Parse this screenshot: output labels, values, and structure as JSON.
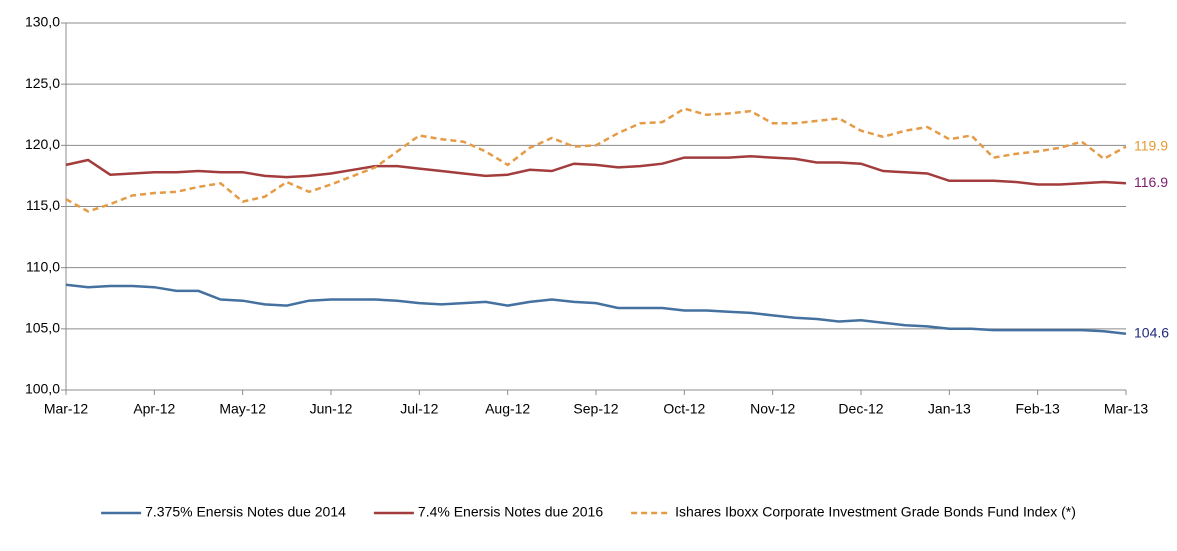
{
  "chart_data": {
    "type": "line",
    "categories": [
      "Mar-12",
      null,
      null,
      null,
      "Apr-12",
      null,
      null,
      null,
      "May-12",
      null,
      null,
      null,
      "Jun-12",
      null,
      null,
      null,
      "Jul-12",
      null,
      null,
      null,
      "Aug-12",
      null,
      null,
      null,
      "Sep-12",
      null,
      null,
      null,
      "Oct-12",
      null,
      null,
      null,
      "Nov-12",
      null,
      null,
      null,
      "Dec-12",
      null,
      null,
      null,
      "Jan-13",
      null,
      null,
      null,
      "Feb-13",
      null,
      null,
      null,
      "Mar-13"
    ],
    "series": [
      {
        "name": "7.375% Enersis Notes due 2014",
        "color": "#44719f",
        "label_color": "#1f2a7a",
        "style": "solid",
        "values": [
          108.6,
          108.4,
          108.5,
          108.5,
          108.4,
          108.1,
          108.1,
          107.4,
          107.3,
          107.0,
          106.9,
          107.3,
          107.4,
          107.4,
          107.4,
          107.3,
          107.1,
          107.0,
          107.1,
          107.2,
          106.9,
          107.2,
          107.4,
          107.2,
          107.1,
          106.7,
          106.7,
          106.7,
          106.5,
          106.5,
          106.4,
          106.3,
          106.1,
          105.9,
          105.8,
          105.6,
          105.7,
          105.5,
          105.3,
          105.2,
          105.0,
          105.0,
          104.9,
          104.9,
          104.9,
          104.9,
          104.9,
          104.8,
          104.6
        ]
      },
      {
        "name": "7.4% Enersis Notes due 2016",
        "color": "#a33c3c",
        "label_color": "#7a1f6e",
        "style": "solid",
        "values": [
          118.4,
          118.8,
          117.6,
          117.7,
          117.8,
          117.8,
          117.9,
          117.8,
          117.8,
          117.5,
          117.4,
          117.5,
          117.7,
          118.0,
          118.3,
          118.3,
          118.1,
          117.9,
          117.7,
          117.5,
          117.6,
          118.0,
          117.9,
          118.5,
          118.4,
          118.2,
          118.3,
          118.5,
          119.0,
          119.0,
          119.0,
          119.1,
          119.0,
          118.9,
          118.6,
          118.6,
          118.5,
          117.9,
          117.8,
          117.7,
          117.1,
          117.1,
          117.1,
          117.0,
          116.8,
          116.8,
          116.9,
          117.0,
          116.9
        ]
      },
      {
        "name": "Ishares Iboxx Corporate Investment Grade Bonds Fund Index (*)",
        "color": "#e59a45",
        "label_color": "#e59a30",
        "style": "dashed",
        "values": [
          115.6,
          114.6,
          115.2,
          115.9,
          116.1,
          116.2,
          116.6,
          116.9,
          115.4,
          115.8,
          117.0,
          116.2,
          116.8,
          117.5,
          118.2,
          119.5,
          120.8,
          120.5,
          120.3,
          119.5,
          118.4,
          119.8,
          120.6,
          119.9,
          120.0,
          121.0,
          121.8,
          121.9,
          123.0,
          122.5,
          122.6,
          122.8,
          121.8,
          121.8,
          122.0,
          122.2,
          121.2,
          120.7,
          121.2,
          121.5,
          120.5,
          120.8,
          119.0,
          119.3,
          119.5,
          119.8,
          120.3,
          118.9,
          119.9
        ]
      }
    ],
    "ylim": [
      100,
      130
    ],
    "yticks": [
      {
        "value": 100,
        "label": "100,0"
      },
      {
        "value": 105,
        "label": "105,0"
      },
      {
        "value": 110,
        "label": "110,0"
      },
      {
        "value": 115,
        "label": "115,0"
      },
      {
        "value": 120,
        "label": "120,0"
      },
      {
        "value": 125,
        "label": "125,0"
      },
      {
        "value": 130,
        "label": "130,0"
      }
    ],
    "grid": true,
    "legend": "bottom"
  }
}
